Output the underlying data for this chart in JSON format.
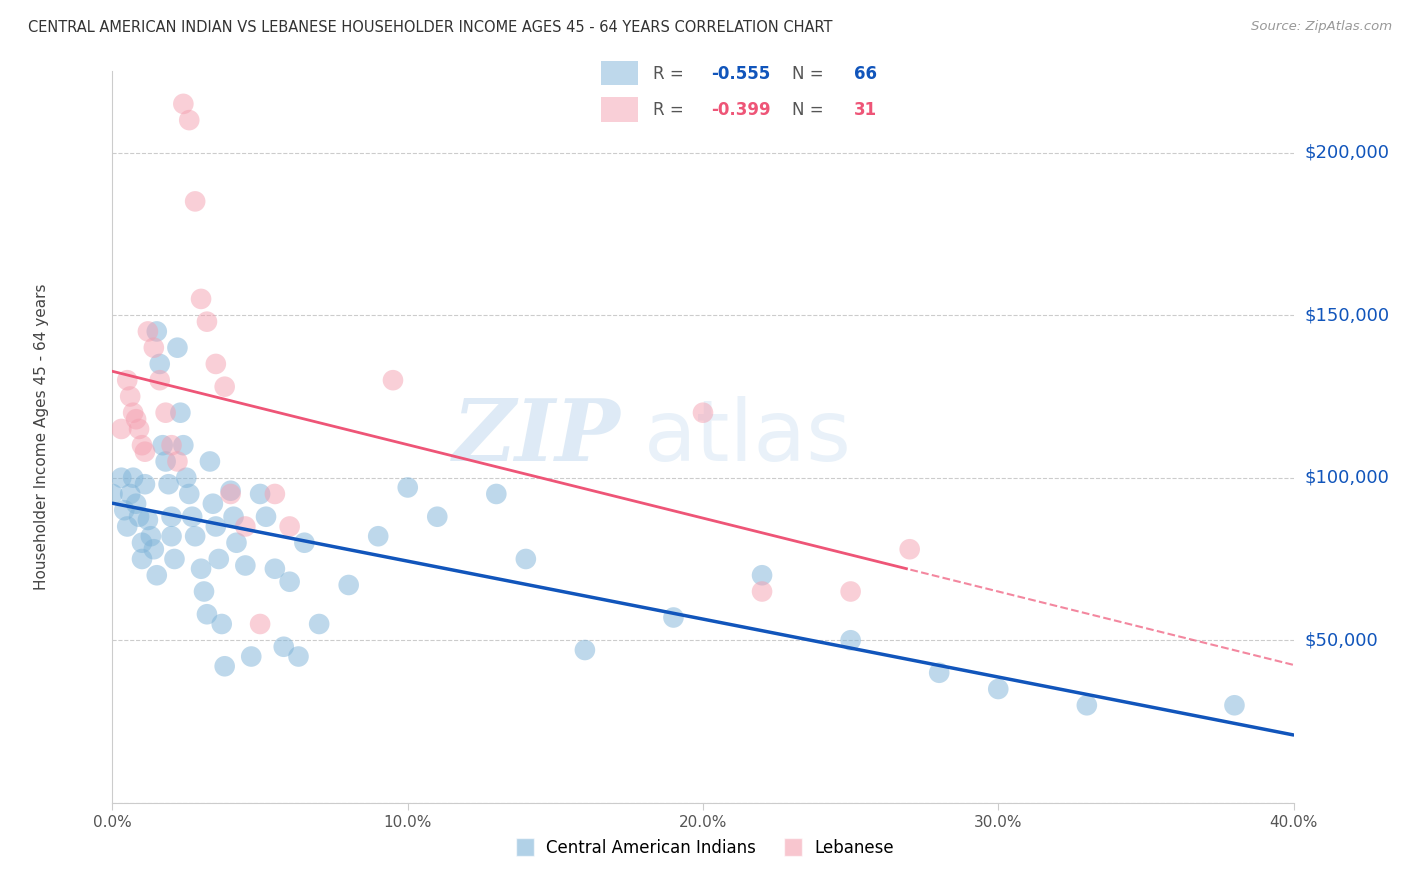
{
  "title": "CENTRAL AMERICAN INDIAN VS LEBANESE HOUSEHOLDER INCOME AGES 45 - 64 YEARS CORRELATION CHART",
  "source": "Source: ZipAtlas.com",
  "ylabel": "Householder Income Ages 45 - 64 years",
  "r_blue": -0.555,
  "n_blue": 66,
  "r_pink": -0.399,
  "n_pink": 31,
  "legend_label_blue": "Central American Indians",
  "legend_label_pink": "Lebanese",
  "blue_color": "#7EB3D8",
  "pink_color": "#F4A0B0",
  "trend_blue_color": "#1155BB",
  "trend_pink_color": "#EE5577",
  "blue_scatter_x": [
    0.0,
    0.3,
    0.4,
    0.5,
    0.6,
    0.7,
    0.8,
    0.9,
    1.0,
    1.0,
    1.1,
    1.2,
    1.3,
    1.4,
    1.5,
    1.5,
    1.6,
    1.7,
    1.8,
    1.9,
    2.0,
    2.0,
    2.1,
    2.2,
    2.3,
    2.4,
    2.5,
    2.6,
    2.7,
    2.8,
    3.0,
    3.1,
    3.2,
    3.3,
    3.4,
    3.5,
    3.6,
    3.7,
    3.8,
    4.0,
    4.1,
    4.2,
    4.5,
    4.7,
    5.0,
    5.2,
    5.5,
    5.8,
    6.0,
    6.3,
    6.5,
    7.0,
    8.0,
    9.0,
    10.0,
    11.0,
    13.0,
    14.0,
    16.0,
    19.0,
    22.0,
    25.0,
    28.0,
    30.0,
    33.0,
    38.0
  ],
  "blue_scatter_y": [
    95000,
    100000,
    90000,
    85000,
    95000,
    100000,
    92000,
    88000,
    80000,
    75000,
    98000,
    87000,
    82000,
    78000,
    70000,
    145000,
    135000,
    110000,
    105000,
    98000,
    88000,
    82000,
    75000,
    140000,
    120000,
    110000,
    100000,
    95000,
    88000,
    82000,
    72000,
    65000,
    58000,
    105000,
    92000,
    85000,
    75000,
    55000,
    42000,
    96000,
    88000,
    80000,
    73000,
    45000,
    95000,
    88000,
    72000,
    48000,
    68000,
    45000,
    80000,
    55000,
    67000,
    82000,
    97000,
    88000,
    95000,
    75000,
    47000,
    57000,
    70000,
    50000,
    40000,
    35000,
    30000,
    30000
  ],
  "pink_scatter_x": [
    0.3,
    0.5,
    0.6,
    0.7,
    0.8,
    0.9,
    1.0,
    1.1,
    1.2,
    1.4,
    1.6,
    1.8,
    2.0,
    2.2,
    2.4,
    2.6,
    2.8,
    3.0,
    3.2,
    3.5,
    3.8,
    4.0,
    4.5,
    5.0,
    5.5,
    6.0,
    9.5,
    20.0,
    22.0,
    25.0,
    27.0
  ],
  "pink_scatter_y": [
    115000,
    130000,
    125000,
    120000,
    118000,
    115000,
    110000,
    108000,
    145000,
    140000,
    130000,
    120000,
    110000,
    105000,
    215000,
    210000,
    185000,
    155000,
    148000,
    135000,
    128000,
    95000,
    85000,
    55000,
    95000,
    85000,
    130000,
    120000,
    65000,
    65000,
    78000
  ],
  "xlim": [
    0.0,
    40.0
  ],
  "ylim": [
    0,
    225000
  ],
  "yticks": [
    0,
    50000,
    100000,
    150000,
    200000
  ],
  "ytick_labels": [
    "",
    "$50,000",
    "$100,000",
    "$150,000",
    "$200,000"
  ],
  "xticks": [
    0.0,
    10.0,
    20.0,
    30.0,
    40.0
  ],
  "xtick_labels": [
    "0.0%",
    "10.0%",
    "20.0%",
    "30.0%",
    "40.0%"
  ],
  "grid_color": "#CCCCCC",
  "background_color": "#FFFFFF",
  "watermark_zip": "ZIP",
  "watermark_atlas": "atlas"
}
